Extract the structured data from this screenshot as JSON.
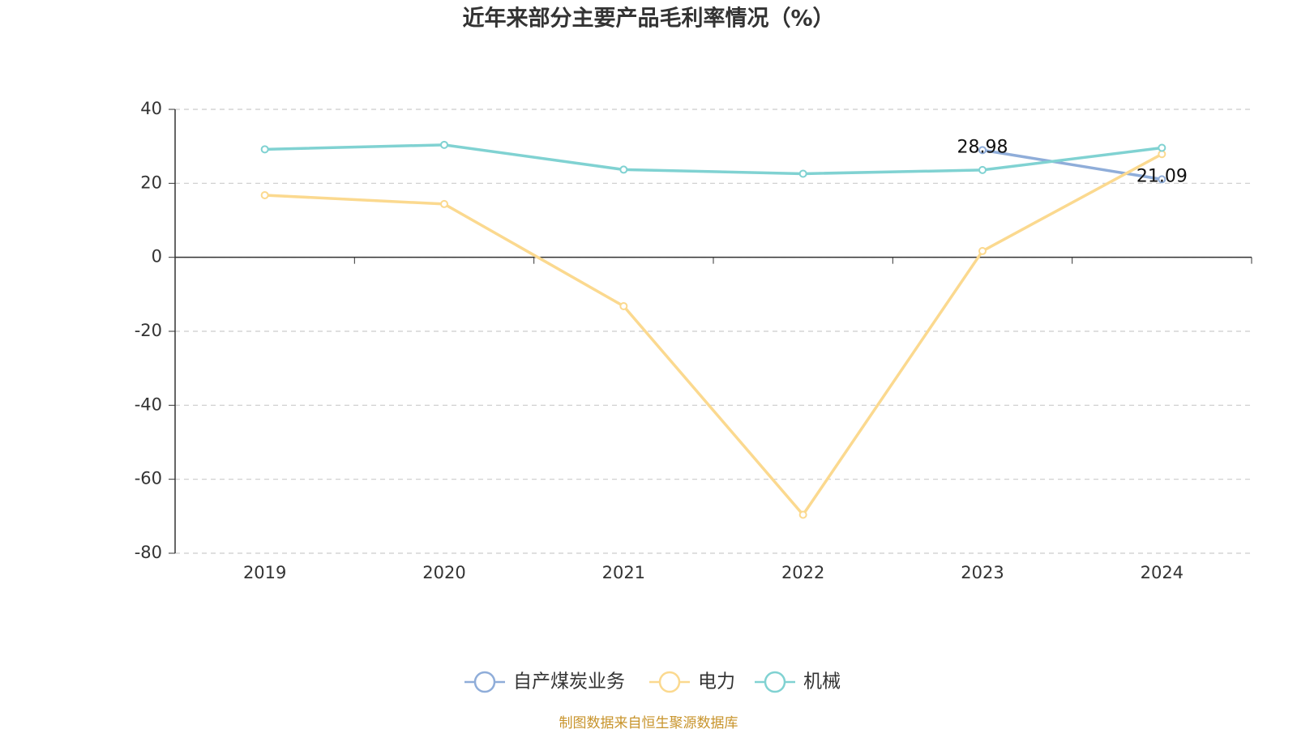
{
  "chart_data": {
    "type": "line",
    "title": "近年来部分主要产品毛利率情况（%）",
    "categories": [
      "2019",
      "2020",
      "2021",
      "2022",
      "2023",
      "2024"
    ],
    "series": [
      {
        "name": "自产煤炭业务",
        "color": "#8fadd9",
        "values": [
          null,
          null,
          null,
          null,
          28.98,
          21.09
        ],
        "show_labels": true
      },
      {
        "name": "电力",
        "color": "#fbd98f",
        "values": [
          16.8,
          14.4,
          -13.2,
          -69.6,
          1.7,
          27.9
        ],
        "show_labels": false
      },
      {
        "name": "机械",
        "color": "#80d2d2",
        "values": [
          29.2,
          30.4,
          23.7,
          22.6,
          23.6,
          29.6
        ],
        "show_labels": false
      }
    ],
    "ylim": [
      -80,
      40
    ],
    "yticks": [
      -80,
      -60,
      -40,
      -20,
      0,
      20,
      40
    ],
    "grid": true,
    "source": "制图数据来自恒生聚源数据库"
  }
}
